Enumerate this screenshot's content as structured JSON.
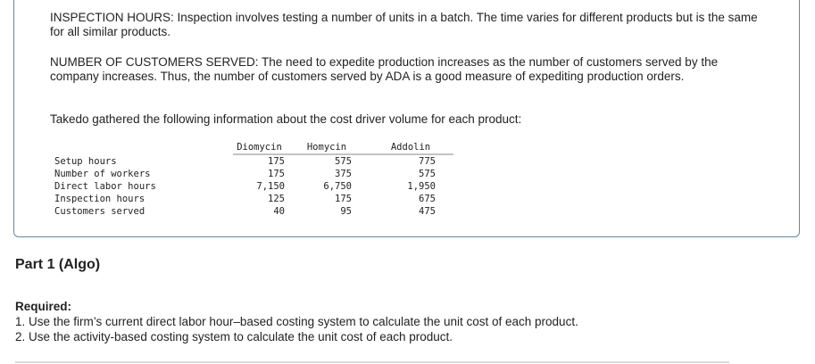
{
  "intro": {
    "inspection_hours": "INSPECTION HOURS: Inspection involves testing a number of units in a batch. The time varies for different products but is the same for all similar products.",
    "customers_served": "NUMBER OF CUSTOMERS SERVED: The need to expedite production increases as the number of customers served by the company increases. Thus, the number of customers served by ADA is a good measure of expediting production orders.",
    "lead_in": "Takedo gathered the following information about the cost driver volume for each product:"
  },
  "cost_table": {
    "headers": [
      "Diomycin",
      "Homycin",
      "Addolin"
    ],
    "rows": [
      {
        "label": "Setup hours",
        "values": [
          "175",
          "575",
          "775"
        ]
      },
      {
        "label": "Number of workers",
        "values": [
          "175",
          "375",
          "575"
        ]
      },
      {
        "label": "Direct labor hours",
        "values": [
          "7,150",
          "6,750",
          "1,950"
        ]
      },
      {
        "label": "Inspection hours",
        "values": [
          "125",
          "175",
          "675"
        ]
      },
      {
        "label": "Customers served",
        "values": [
          "40",
          "95",
          "475"
        ]
      }
    ]
  },
  "part": {
    "title": "Part 1 (Algo)"
  },
  "required": {
    "title": "Required:",
    "items": [
      "1. Use the firm’s current direct labor hour–based costing system to calculate the unit cost of each product.",
      "2. Use the activity-based costing system to calculate the unit cost of each product."
    ]
  }
}
